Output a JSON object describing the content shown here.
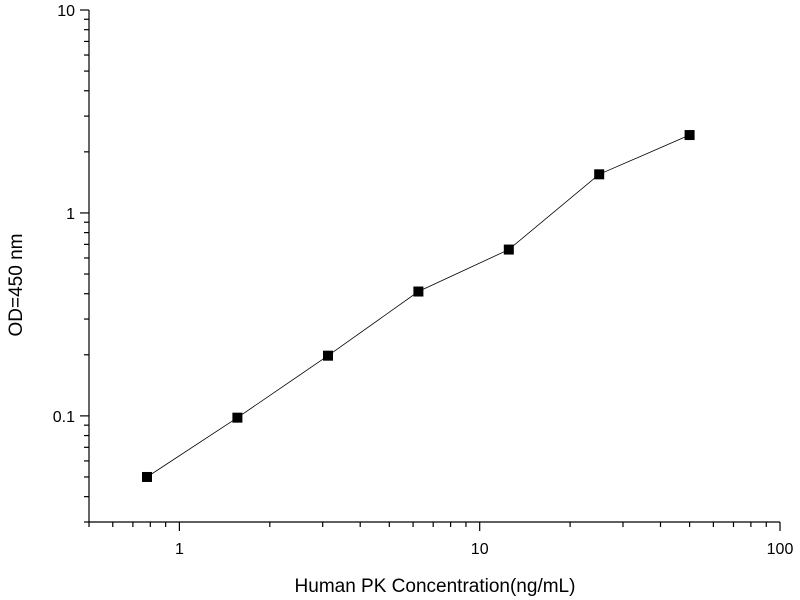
{
  "chart_data": {
    "type": "line",
    "xlabel": "Human PK Concentration(ng/mL)",
    "ylabel": "OD=450 nm",
    "xscale": "log",
    "yscale": "log",
    "xlim": [
      0.5,
      100
    ],
    "ylim": [
      0.03,
      10
    ],
    "x_ticks": [
      {
        "value": 1,
        "label": "1"
      },
      {
        "value": 10,
        "label": "10"
      },
      {
        "value": 100,
        "label": "100"
      }
    ],
    "y_ticks": [
      {
        "value": 0.1,
        "label": "0.1"
      },
      {
        "value": 1,
        "label": "1"
      },
      {
        "value": 10,
        "label": "10"
      }
    ],
    "grid": false,
    "legend": "none",
    "series": [
      {
        "marker": "square",
        "color": "#000000",
        "x": [
          0.78,
          1.56,
          3.125,
          6.25,
          12.5,
          25,
          50
        ],
        "y": [
          0.05,
          0.098,
          0.198,
          0.41,
          0.66,
          1.55,
          2.42
        ]
      }
    ]
  }
}
